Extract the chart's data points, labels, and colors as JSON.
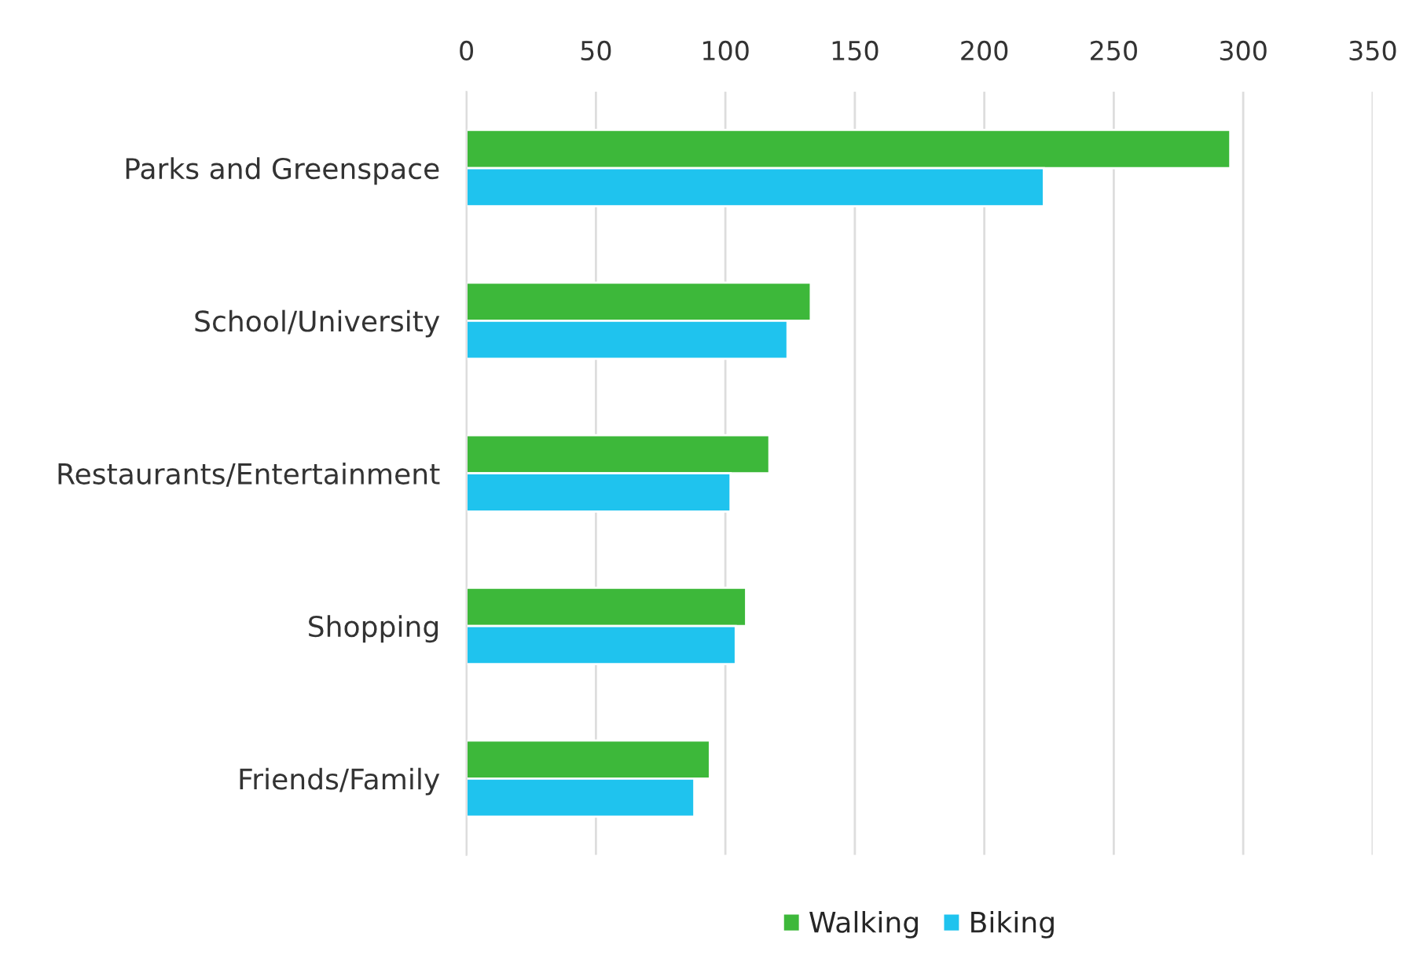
{
  "chart_data": {
    "type": "bar",
    "orientation": "horizontal",
    "categories": [
      "Parks and Greenspace",
      "School/University",
      "Restaurants/Entertainment",
      "Shopping",
      "Friends/Family"
    ],
    "series": [
      {
        "name": "Walking",
        "color": "#3db83a",
        "values": [
          295,
          133,
          117,
          108,
          94
        ]
      },
      {
        "name": "Biking",
        "color": "#1fc3ee",
        "values": [
          223,
          124,
          102,
          104,
          88
        ]
      }
    ],
    "xlim": [
      0,
      350
    ],
    "xticks": [
      0,
      50,
      100,
      150,
      200,
      250,
      300,
      350
    ],
    "grid": "x",
    "legend": "bottom"
  }
}
